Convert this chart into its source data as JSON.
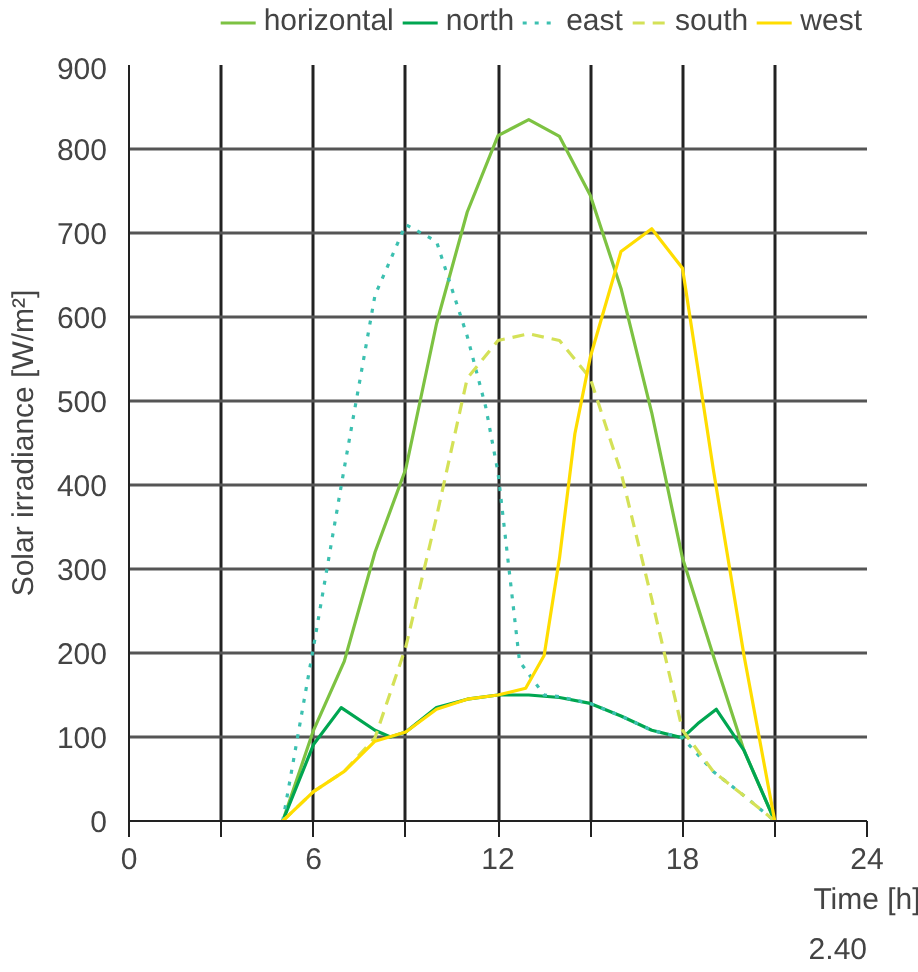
{
  "chart_data": {
    "type": "line",
    "xlabel": "Time [h]",
    "ylabel": "Solar irradiance [W/m²]",
    "annotations": [
      "2.40"
    ],
    "xlim": [
      0,
      24
    ],
    "ylim": [
      0,
      900
    ],
    "xticks": [
      0,
      {
        "value": 3,
        "label": null
      },
      6,
      {
        "value": 9,
        "label": null
      },
      12,
      {
        "value": 15,
        "label": null
      },
      18,
      {
        "value": 21,
        "label": null
      },
      24
    ],
    "yticks": [
      0,
      100,
      200,
      300,
      400,
      500,
      600,
      700,
      800,
      900
    ],
    "grid": true,
    "legend": "top",
    "marker": "none",
    "series": [
      {
        "name": "horizontal",
        "color": "#7dc242",
        "line_style": "solid",
        "x": [
          5,
          6,
          7,
          8,
          9,
          10,
          11,
          12,
          13,
          14,
          15,
          16,
          17,
          18,
          19,
          20,
          21
        ],
        "values": [
          0,
          108,
          190,
          320,
          419,
          592,
          725,
          816,
          835,
          815,
          745,
          634,
          486,
          313,
          197,
          84,
          0
        ]
      },
      {
        "name": "north",
        "color": "#00a651",
        "line_style": "solid",
        "x": [
          5,
          6,
          6.9,
          8,
          8.5,
          9,
          10,
          11,
          12,
          13,
          14,
          15,
          16,
          17,
          18,
          18.5,
          19.1,
          20,
          21
        ],
        "values": [
          0,
          91,
          135,
          108,
          100,
          106,
          135,
          145,
          150,
          150,
          147,
          140,
          125,
          108,
          99,
          116,
          133,
          84,
          0
        ]
      },
      {
        "name": "east",
        "color": "#3cc0b0",
        "line_style": "dotted",
        "x": [
          5,
          6,
          7,
          8,
          9,
          10,
          11,
          11.6,
          12,
          12.7,
          13.5,
          14,
          15,
          16,
          17,
          18,
          19,
          20,
          21
        ],
        "values": [
          0,
          207,
          420,
          626,
          710,
          690,
          577,
          493,
          415,
          190,
          150,
          148,
          140,
          125,
          108,
          99,
          59,
          30,
          0
        ]
      },
      {
        "name": "south",
        "color": "#d4e157",
        "line_style": "dashed",
        "x": [
          5,
          6,
          7,
          8,
          9,
          10,
          11,
          12,
          13,
          14,
          15,
          16,
          17,
          18,
          19,
          20,
          21
        ],
        "values": [
          0,
          35,
          59,
          99,
          207,
          362,
          527,
          572,
          580,
          572,
          527,
          415,
          264,
          108,
          59,
          30,
          0
        ]
      },
      {
        "name": "west",
        "color": "#ffdd00",
        "line_style": "solid",
        "x": [
          5,
          6,
          7,
          8,
          9,
          10,
          11,
          12,
          12.9,
          13.5,
          14,
          14.5,
          15,
          16,
          17,
          18,
          19,
          20,
          21
        ],
        "values": [
          0,
          35,
          59,
          95,
          106,
          133,
          145,
          150,
          158,
          197,
          313,
          461,
          552,
          678,
          705,
          658,
          419,
          197,
          0
        ]
      }
    ]
  }
}
